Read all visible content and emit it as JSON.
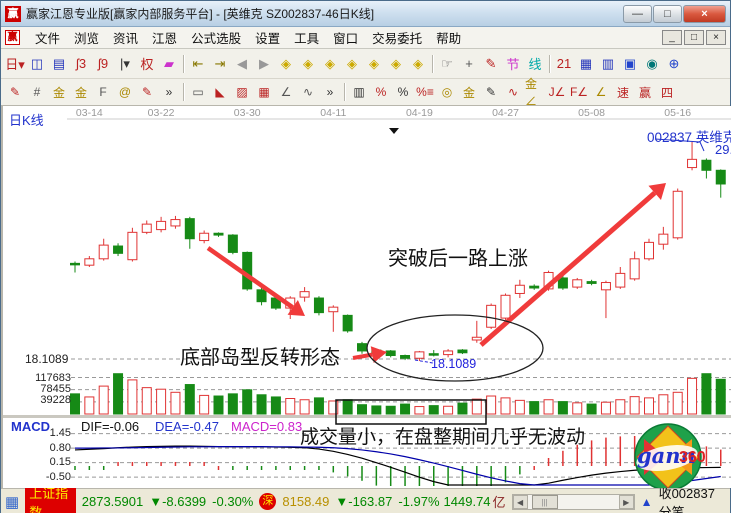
{
  "window": {
    "title": "赢家江恩专业版[赢家内部服务平台] - [英维克  SZ002837-46日K线]",
    "app_icon_char": "赢",
    "minimize_glyph": "—",
    "maximize_glyph": "□",
    "close_glyph": "×"
  },
  "menu": {
    "logo_char": "赢",
    "items": [
      "文件",
      "浏览",
      "资讯",
      "江恩",
      "公式选股",
      "设置",
      "工具",
      "窗口",
      "交易委托",
      "帮助"
    ],
    "mdi_buttons": [
      "_",
      "□",
      "×"
    ]
  },
  "toolbar1": [
    {
      "name": "period-day-dropdown",
      "glyph": "日▾",
      "color": "#bb2222"
    },
    {
      "name": "chart-window-icon",
      "glyph": "◫",
      "color": "#2233bb"
    },
    {
      "name": "info-list-icon",
      "glyph": "▤",
      "color": "#2233bb"
    },
    {
      "name": "ma3-icon",
      "glyph": "ʃ3",
      "color": "#bb2222"
    },
    {
      "name": "ma9-icon",
      "glyph": "ʃ9",
      "color": "#bb2222"
    },
    {
      "name": "candle-style-dropdown",
      "glyph": "|▾",
      "color": "#333333"
    },
    {
      "name": "fuquan-icon",
      "glyph": "权",
      "color": "#bb2222"
    },
    {
      "name": "color-volume-icon",
      "glyph": "▰",
      "color": "#cc33cc"
    },
    {
      "sep": true
    },
    {
      "name": "first-bar-icon",
      "glyph": "⇤",
      "color": "#887700"
    },
    {
      "name": "last-bar-icon",
      "glyph": "⇥",
      "color": "#887700"
    },
    {
      "name": "prev-bar-icon",
      "glyph": "◀",
      "color": "#999999"
    },
    {
      "name": "next-bar-icon",
      "glyph": "▶",
      "color": "#999999"
    },
    {
      "name": "diamond-left-icon",
      "glyph": "◈",
      "color": "#ccaa00"
    },
    {
      "name": "diamond-right-icon",
      "glyph": "◈",
      "color": "#ccaa00"
    },
    {
      "name": "diamond-back-icon",
      "glyph": "◈",
      "color": "#ccaa00"
    },
    {
      "name": "diamond-expand-icon",
      "glyph": "◈",
      "color": "#ccaa00"
    },
    {
      "name": "diamond-compress-icon",
      "glyph": "◈",
      "color": "#ccaa00"
    },
    {
      "name": "diamond-center-icon",
      "glyph": "◈",
      "color": "#ccaa00"
    },
    {
      "name": "diamond-full-icon",
      "glyph": "◈",
      "color": "#ccaa00"
    },
    {
      "sep": true
    },
    {
      "name": "pan-hand-icon",
      "glyph": "☞",
      "color": "#555555"
    },
    {
      "name": "crosshair-icon",
      "glyph": "+",
      "color": "#555555"
    },
    {
      "name": "measure-pen-icon",
      "glyph": "✎",
      "color": "#bb2222"
    },
    {
      "name": "segment-tool-icon",
      "glyph": "节",
      "color": "#cc33cc"
    },
    {
      "name": "line-tool-icon",
      "glyph": "线",
      "color": "#00aaaa"
    },
    {
      "sep": true
    },
    {
      "name": "calendar-21-icon",
      "glyph": "21",
      "color": "#bb2222"
    },
    {
      "name": "calculator-icon",
      "glyph": "▦",
      "color": "#2233bb"
    },
    {
      "name": "notes-icon",
      "glyph": "▥",
      "color": "#2233bb"
    },
    {
      "name": "save-icon",
      "glyph": "▣",
      "color": "#2244cc"
    },
    {
      "name": "capture-icon",
      "glyph": "◉",
      "color": "#007777"
    },
    {
      "name": "trade-link-icon",
      "glyph": "⊕",
      "color": "#2244cc"
    }
  ],
  "toolbar2": [
    {
      "name": "brush-icon",
      "glyph": "✎",
      "color": "#bb2222"
    },
    {
      "name": "grid-tool-icon",
      "glyph": "#",
      "color": "#555555"
    },
    {
      "name": "gold-section-icon",
      "glyph": "金",
      "color": "#aa8800"
    },
    {
      "name": "gold-grid-icon",
      "glyph": "金",
      "color": "#aa8800"
    },
    {
      "name": "fibonacci-icon",
      "glyph": "F",
      "color": "#555555"
    },
    {
      "name": "spiral-icon",
      "glyph": "@",
      "color": "#aa8800"
    },
    {
      "name": "marker-pen-icon",
      "glyph": "✎",
      "color": "#bb2222"
    },
    {
      "name": "more-tools-chevron",
      "glyph": "»",
      "color": "#333333"
    },
    {
      "sep": true
    },
    {
      "name": "rect-tool-icon",
      "glyph": "▭",
      "color": "#555555"
    },
    {
      "name": "gann-fan-icon",
      "glyph": "◣",
      "color": "#bb2222"
    },
    {
      "name": "gann-box-icon",
      "glyph": "▨",
      "color": "#bb2222"
    },
    {
      "name": "gann-grid-icon",
      "glyph": "▦",
      "color": "#bb2222"
    },
    {
      "name": "angle-tool-icon",
      "glyph": "∠",
      "color": "#555555"
    },
    {
      "name": "wave-tool-icon",
      "glyph": "∿",
      "color": "#555555"
    },
    {
      "name": "more-tools-chevron-2",
      "glyph": "»",
      "color": "#333333"
    },
    {
      "sep": true
    },
    {
      "name": "stats-icon",
      "glyph": "▥",
      "color": "#333333"
    },
    {
      "name": "percent-retrace-icon",
      "glyph": "%",
      "color": "#bb2222"
    },
    {
      "name": "percent-icon",
      "glyph": "%",
      "color": "#333333"
    },
    {
      "name": "percent-line-icon",
      "glyph": "%≡",
      "color": "#bb2222"
    },
    {
      "name": "gold-circle-icon",
      "glyph": "◎",
      "color": "#aa8800"
    },
    {
      "name": "gold-line-icon",
      "glyph": "金",
      "color": "#aa8800"
    },
    {
      "name": "arrow-brush-icon",
      "glyph": "✎",
      "color": "#333333"
    },
    {
      "name": "wave-red-icon",
      "glyph": "∿",
      "color": "#bb2222"
    },
    {
      "name": "gold-angle-icon",
      "glyph": "金∠",
      "color": "#aa8800"
    },
    {
      "name": "j-line-icon",
      "glyph": "J∠",
      "color": "#bb2222"
    },
    {
      "name": "f-line-icon",
      "glyph": "F∠",
      "color": "#bb2222"
    },
    {
      "name": "gold-ray-icon",
      "glyph": "∠",
      "color": "#aa8800"
    },
    {
      "name": "speed-line-icon",
      "glyph": "速",
      "color": "#bb2222"
    },
    {
      "name": "win-line-icon",
      "glyph": "赢",
      "color": "#bb2222"
    },
    {
      "name": "four-line-icon",
      "glyph": "四",
      "color": "#bb2222"
    }
  ],
  "chart_header": {
    "pane_label": "日K线",
    "stock_code_name": "002837 英维克",
    "right_price_label": "29."
  },
  "annotations": {
    "uptrend_note": "突破后一路上涨",
    "island_note": "底部岛型反转形态",
    "volume_note": "成交量小，在盘整期间几乎无波动",
    "island_price_label": "18.1089",
    "left_price_label": "18.1089"
  },
  "volume_axis_labels": [
    "117683",
    "78455",
    "39228"
  ],
  "macd_panel": {
    "label": "MACD",
    "dif_label": "DIF=-0.06",
    "dea_label": "DEA=-0.47",
    "macd_label": "MACD=0.83",
    "axis_labels": [
      "1.45",
      "0.80",
      "0.15",
      "-0.50"
    ]
  },
  "logo": {
    "gann_text": "gann",
    "num_text": "360"
  },
  "status_bar": {
    "grid_icon": "▦",
    "index_badge": "上证指数",
    "sh_value": "2873.5901",
    "sh_change": "▼-8.6399",
    "sh_pct": "-0.30%",
    "sz_icon": "深",
    "sz_value": "8158.49",
    "sz_change": "▼-163.87",
    "sz_pct": "-1.97%",
    "amount": "1449.74",
    "amount_unit": "亿",
    "scroll_left": "◀",
    "scroll_right": "▶",
    "thumb_glyph": "|||",
    "flag_icon": "▲",
    "right_label": "收002837分笔"
  },
  "chart_data": {
    "type": "candlestick",
    "title": "英维克 SZ002837 46日K线",
    "x_labels": [
      "03-14",
      "03-22",
      "03-30",
      "04-11",
      "04-19",
      "04-27",
      "05-08",
      "05-16"
    ],
    "x_label_indices": [
      1,
      6,
      12,
      18,
      24,
      30,
      36,
      42
    ],
    "price_reference_line": 18.1089,
    "right_price_tick": 29.0,
    "volume_axis_values": [
      117683,
      78455,
      39228
    ],
    "candles_ohlc": [
      [
        23.35,
        23.45,
        22.85,
        23.3
      ],
      [
        23.25,
        23.75,
        23.15,
        23.6
      ],
      [
        23.6,
        24.7,
        23.5,
        24.35
      ],
      [
        24.3,
        24.45,
        23.75,
        23.9
      ],
      [
        23.55,
        25.3,
        23.45,
        25.05
      ],
      [
        25.05,
        25.7,
        24.95,
        25.5
      ],
      [
        25.2,
        25.9,
        25.05,
        25.65
      ],
      [
        25.4,
        25.95,
        25.25,
        25.75
      ],
      [
        25.8,
        25.9,
        24.15,
        24.7
      ],
      [
        24.6,
        25.15,
        24.45,
        25.0
      ],
      [
        25.0,
        25.05,
        24.8,
        24.9
      ],
      [
        24.9,
        24.95,
        23.85,
        23.95
      ],
      [
        23.95,
        24.0,
        21.85,
        21.95
      ],
      [
        21.9,
        22.05,
        21.05,
        21.25
      ],
      [
        21.45,
        21.55,
        20.8,
        20.9
      ],
      [
        20.9,
        21.55,
        20.3,
        21.45
      ],
      [
        21.5,
        22.05,
        21.25,
        21.8
      ],
      [
        21.45,
        21.55,
        20.5,
        20.65
      ],
      [
        20.7,
        21.05,
        19.6,
        20.95
      ],
      [
        20.5,
        20.55,
        19.55,
        19.65
      ],
      [
        18.95,
        19.05,
        18.4,
        18.55
      ],
      [
        18.6,
        18.65,
        18.3,
        18.4
      ],
      [
        18.55,
        18.6,
        18.2,
        18.3
      ],
      [
        18.3,
        18.35,
        18.05,
        18.15
      ],
      [
        18.15,
        18.55,
        18.0,
        18.5
      ],
      [
        18.4,
        18.6,
        18.25,
        18.35
      ],
      [
        18.35,
        18.65,
        18.2,
        18.55
      ],
      [
        18.6,
        18.65,
        18.38,
        18.45
      ],
      [
        19.15,
        20.2,
        19.0,
        19.3
      ],
      [
        19.85,
        21.15,
        19.75,
        21.05
      ],
      [
        20.35,
        21.7,
        20.25,
        21.6
      ],
      [
        21.7,
        22.45,
        21.45,
        22.15
      ],
      [
        22.1,
        22.2,
        21.9,
        22.0
      ],
      [
        21.95,
        22.95,
        21.85,
        22.85
      ],
      [
        22.55,
        22.65,
        21.9,
        22.0
      ],
      [
        22.05,
        22.55,
        21.95,
        22.45
      ],
      [
        22.35,
        22.45,
        22.15,
        22.25
      ],
      [
        21.9,
        22.4,
        20.35,
        22.3
      ],
      [
        22.05,
        23.15,
        21.95,
        22.8
      ],
      [
        22.5,
        24.0,
        22.4,
        23.6
      ],
      [
        23.6,
        24.7,
        23.5,
        24.5
      ],
      [
        24.4,
        25.35,
        24.1,
        24.95
      ],
      [
        24.75,
        27.45,
        24.65,
        27.3
      ],
      [
        28.6,
        30.0,
        28.45,
        29.05
      ],
      [
        29.0,
        29.1,
        28.0,
        28.45
      ],
      [
        28.45,
        28.5,
        26.95,
        27.7
      ]
    ],
    "volumes": [
      65000,
      55000,
      90000,
      130000,
      110000,
      85000,
      80000,
      70000,
      95000,
      60000,
      58000,
      65000,
      78000,
      62000,
      55000,
      50000,
      46000,
      52000,
      42000,
      46000,
      30000,
      26000,
      25000,
      32000,
      24000,
      27000,
      25000,
      35000,
      48000,
      58000,
      52000,
      44000,
      40000,
      46000,
      40000,
      36000,
      32000,
      38000,
      46000,
      56000,
      52000,
      62000,
      70000,
      115000,
      130000,
      112000
    ],
    "macd": {
      "dif": [
        0.72,
        0.75,
        0.78,
        0.82,
        0.85,
        0.87,
        0.88,
        0.89,
        0.89,
        0.88,
        0.87,
        0.86,
        0.86,
        0.86,
        0.85,
        0.84,
        0.82,
        0.76,
        0.66,
        0.52,
        0.35,
        0.15,
        -0.06,
        -0.28,
        -0.5,
        -0.7,
        -0.88,
        -1.02,
        -1.1,
        -1.12,
        -1.08,
        -1.0,
        -0.89,
        -0.77,
        -0.64,
        -0.52,
        -0.41,
        -0.32,
        -0.25,
        -0.19,
        -0.15,
        -0.12,
        -0.1,
        -0.08,
        -0.07,
        -0.06
      ],
      "dea": [
        0.8,
        0.8,
        0.81,
        0.81,
        0.82,
        0.83,
        0.84,
        0.85,
        0.86,
        0.86,
        0.87,
        0.87,
        0.87,
        0.87,
        0.86,
        0.86,
        0.85,
        0.84,
        0.82,
        0.78,
        0.72,
        0.64,
        0.54,
        0.42,
        0.28,
        0.13,
        -0.03,
        -0.2,
        -0.37,
        -0.53,
        -0.67,
        -0.79,
        -0.89,
        -0.97,
        -1.02,
        -1.05,
        -1.05,
        -1.03,
        -0.99,
        -0.94,
        -0.88,
        -0.81,
        -0.73,
        -0.65,
        -0.56,
        -0.47
      ],
      "axis_values": [
        1.45,
        0.8,
        0.15,
        -0.5
      ]
    },
    "colors": {
      "up": "#e03333",
      "down": "#168a16",
      "grid": "#999999",
      "annotation_red": "#f03b3b",
      "label_blue": "#2233cc"
    }
  }
}
